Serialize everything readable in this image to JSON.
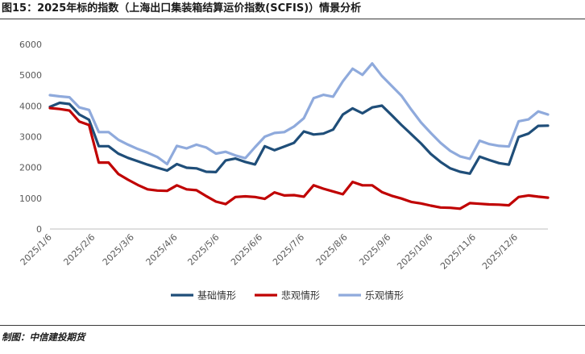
{
  "figure": {
    "title": "图15：2025年标的指数（上海出口集装箱结算运价指数(SCFIS)）情景分析",
    "source": "制图：中信建投期货"
  },
  "chart_data": {
    "type": "line",
    "title": "图15：2025年标的指数（上海出口集装箱结算运价指数(SCFIS)）情景分析",
    "xlabel": "",
    "ylabel": "",
    "ylim": [
      0,
      6000
    ],
    "yticks": [
      0,
      1000,
      2000,
      3000,
      4000,
      5000,
      6000
    ],
    "xlim": [
      "2025/1/6",
      "2025/12/29"
    ],
    "xticks": [
      "2025/1/6",
      "2025/2/6",
      "2025/3/6",
      "2025/4/6",
      "2025/5/6",
      "2025/6/6",
      "2025/7/6",
      "2025/8/6",
      "2025/9/6",
      "2025/10/6",
      "2025/11/6",
      "2025/12/6"
    ],
    "grid": false,
    "legend_position": "bottom",
    "x": [
      "2025/1/6",
      "2025/1/13",
      "2025/1/20",
      "2025/1/27",
      "2025/2/3",
      "2025/2/10",
      "2025/2/17",
      "2025/2/24",
      "2025/3/3",
      "2025/3/10",
      "2025/3/17",
      "2025/3/24",
      "2025/3/31",
      "2025/4/7",
      "2025/4/14",
      "2025/4/21",
      "2025/4/28",
      "2025/5/5",
      "2025/5/12",
      "2025/5/19",
      "2025/5/26",
      "2025/6/2",
      "2025/6/9",
      "2025/6/16",
      "2025/6/23",
      "2025/6/30",
      "2025/7/7",
      "2025/7/14",
      "2025/7/21",
      "2025/7/28",
      "2025/8/4",
      "2025/8/11",
      "2025/8/18",
      "2025/8/25",
      "2025/9/1",
      "2025/9/8",
      "2025/9/15",
      "2025/9/22",
      "2025/9/29",
      "2025/10/6",
      "2025/10/13",
      "2025/10/20",
      "2025/10/27",
      "2025/11/3",
      "2025/11/10",
      "2025/11/17",
      "2025/11/24",
      "2025/12/1",
      "2025/12/8",
      "2025/12/15",
      "2025/12/22",
      "2025/12/29"
    ],
    "series": [
      {
        "name": "基础情形",
        "color": "#1f4e79",
        "values": [
          3970,
          4100,
          4060,
          3720,
          3550,
          2690,
          2690,
          2450,
          2310,
          2200,
          2090,
          1990,
          1900,
          2110,
          1990,
          1970,
          1860,
          1850,
          2230,
          2290,
          2180,
          2100,
          2690,
          2560,
          2680,
          2800,
          3170,
          3070,
          3100,
          3230,
          3720,
          3920,
          3760,
          3950,
          4010,
          3700,
          3380,
          3080,
          2780,
          2440,
          2180,
          1970,
          1860,
          1800,
          2350,
          2240,
          2140,
          2090,
          2990,
          3100,
          3350,
          3360
        ]
      },
      {
        "name": "悲观情形",
        "color": "#c00000",
        "values": [
          3930,
          3900,
          3850,
          3490,
          3380,
          2160,
          2160,
          1790,
          1600,
          1430,
          1290,
          1250,
          1240,
          1420,
          1290,
          1260,
          1070,
          890,
          810,
          1040,
          1060,
          1040,
          980,
          1190,
          1090,
          1100,
          1050,
          1420,
          1310,
          1220,
          1130,
          1530,
          1420,
          1420,
          1200,
          1080,
          990,
          880,
          830,
          760,
          700,
          690,
          660,
          840,
          820,
          800,
          790,
          770,
          1040,
          1090,
          1050,
          1020
        ]
      },
      {
        "name": "乐观情形",
        "color": "#8faadc",
        "values": [
          4350,
          4310,
          4280,
          3950,
          3870,
          3150,
          3150,
          2900,
          2740,
          2600,
          2480,
          2340,
          2110,
          2700,
          2620,
          2740,
          2650,
          2450,
          2510,
          2390,
          2300,
          2660,
          3000,
          3120,
          3150,
          3330,
          3600,
          4250,
          4360,
          4300,
          4800,
          5210,
          5010,
          5380,
          4970,
          4650,
          4330,
          3880,
          3460,
          3120,
          2800,
          2540,
          2360,
          2280,
          2870,
          2760,
          2700,
          2680,
          3500,
          3560,
          3820,
          3720
        ]
      }
    ]
  }
}
